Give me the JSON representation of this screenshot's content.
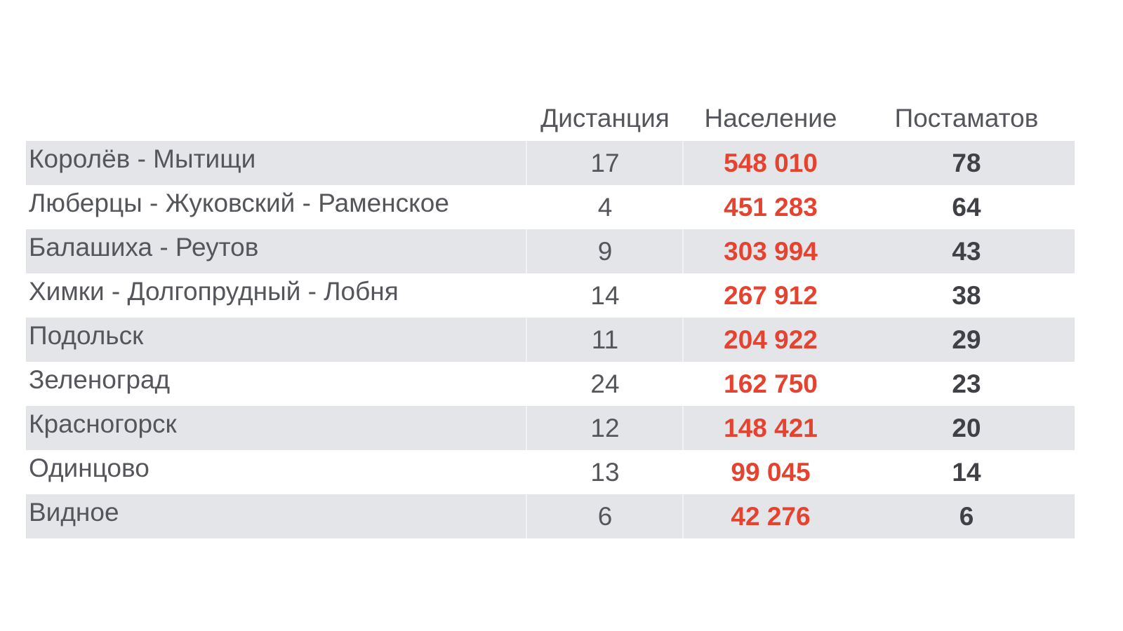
{
  "table": {
    "headers": [
      "",
      "Дистанция",
      "Население",
      "Постаматов"
    ],
    "rows": [
      {
        "name": "Королёв - Мытищи",
        "distance": "17",
        "population": "548 010",
        "postamats": "78"
      },
      {
        "name": "Люберцы - Жуковский - Раменское",
        "distance": "4",
        "population": "451 283",
        "postamats": "64"
      },
      {
        "name": "Балашиха - Реутов",
        "distance": "9",
        "population": "303 994",
        "postamats": "43"
      },
      {
        "name": "Химки - Долгопрудный - Лобня",
        "distance": "14",
        "population": "267 912",
        "postamats": "38"
      },
      {
        "name": "Подольск",
        "distance": "11",
        "population": "204 922",
        "postamats": "29"
      },
      {
        "name": "Зеленоград",
        "distance": "24",
        "population": "162 750",
        "postamats": "23"
      },
      {
        "name": "Красногорск",
        "distance": "12",
        "population": "148 421",
        "postamats": "20"
      },
      {
        "name": "Одинцово",
        "distance": "13",
        "population": "99 045",
        "postamats": "14"
      },
      {
        "name": "Видное",
        "distance": "6",
        "population": "42 276",
        "postamats": "6"
      }
    ]
  },
  "colors": {
    "text": "#54565b",
    "population": "#e5432f",
    "row_stripe": "#e4e5e8"
  }
}
